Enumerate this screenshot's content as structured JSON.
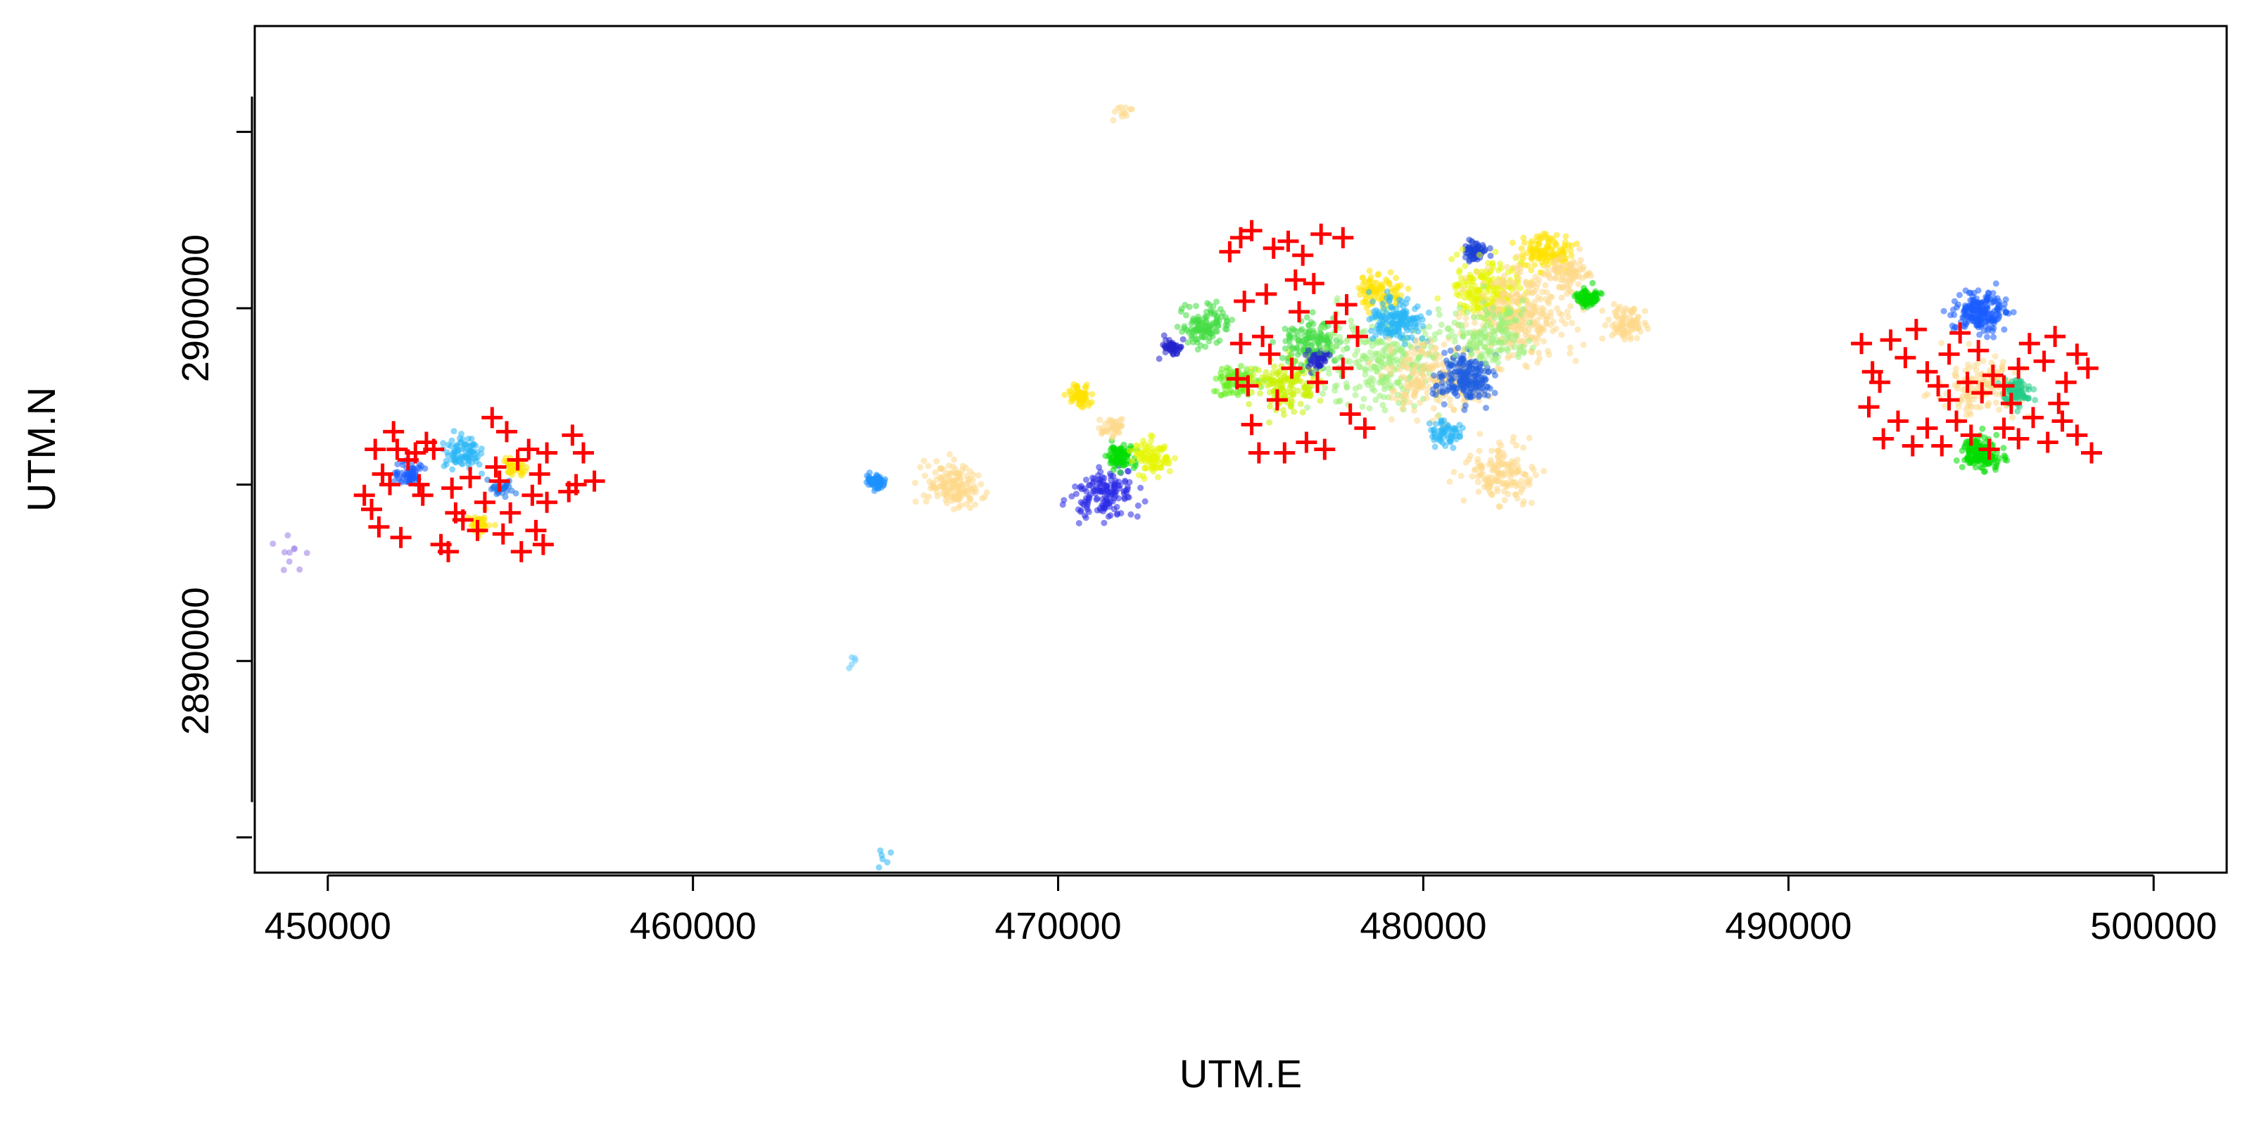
{
  "chart_data": {
    "type": "scatter",
    "title": "",
    "xlabel": "UTM.E",
    "ylabel": "UTM.N",
    "xlim": [
      448000,
      502000
    ],
    "ylim": [
      2884000,
      2908000
    ],
    "x_ticks": [
      450000,
      460000,
      470000,
      480000,
      490000,
      500000
    ],
    "x_tick_labels": [
      "450000",
      "460000",
      "470000",
      "480000",
      "490000",
      "500000"
    ],
    "y_ticks": [
      2890000,
      2900000
    ],
    "y_tick_labels": [
      "2890000",
      "2900000"
    ],
    "grid": false,
    "legend": "none",
    "marker_color": "#ff0000",
    "markers": {
      "symbol": "+",
      "points": [
        [
          451000,
          2894700
        ],
        [
          451200,
          2894300
        ],
        [
          451300,
          2896000
        ],
        [
          451400,
          2893800
        ],
        [
          451500,
          2895300
        ],
        [
          451700,
          2895000
        ],
        [
          451800,
          2896500
        ],
        [
          451900,
          2896000
        ],
        [
          452000,
          2893500
        ],
        [
          452200,
          2895700
        ],
        [
          452400,
          2895900
        ],
        [
          452500,
          2895000
        ],
        [
          452600,
          2894700
        ],
        [
          452700,
          2896200
        ],
        [
          452900,
          2896000
        ],
        [
          453100,
          2893300
        ],
        [
          453300,
          2893100
        ],
        [
          453400,
          2894900
        ],
        [
          453500,
          2894200
        ],
        [
          453700,
          2894000
        ],
        [
          453900,
          2895200
        ],
        [
          454100,
          2893700
        ],
        [
          454300,
          2894500
        ],
        [
          454500,
          2896900
        ],
        [
          454600,
          2895500
        ],
        [
          454700,
          2895100
        ],
        [
          454800,
          2893600
        ],
        [
          454900,
          2896500
        ],
        [
          455000,
          2894200
        ],
        [
          455200,
          2895700
        ],
        [
          455300,
          2893100
        ],
        [
          455500,
          2896000
        ],
        [
          455600,
          2894700
        ],
        [
          455700,
          2893700
        ],
        [
          455800,
          2895300
        ],
        [
          455900,
          2893300
        ],
        [
          456000,
          2894500
        ],
        [
          456000,
          2895900
        ],
        [
          456600,
          2894800
        ],
        [
          456700,
          2896400
        ],
        [
          456800,
          2895000
        ],
        [
          457000,
          2895900
        ],
        [
          457300,
          2895100
        ],
        [
          474900,
          2898000
        ],
        [
          475000,
          2899000
        ],
        [
          475100,
          2900200
        ],
        [
          475200,
          2897800
        ],
        [
          475300,
          2896700
        ],
        [
          475500,
          2895900
        ],
        [
          475600,
          2899200
        ],
        [
          475700,
          2900400
        ],
        [
          475800,
          2898700
        ],
        [
          476000,
          2897400
        ],
        [
          476200,
          2895900
        ],
        [
          476400,
          2898300
        ],
        [
          476600,
          2899900
        ],
        [
          476800,
          2896200
        ],
        [
          477000,
          2900700
        ],
        [
          477100,
          2897900
        ],
        [
          477300,
          2896000
        ],
        [
          477600,
          2899600
        ],
        [
          477800,
          2898300
        ],
        [
          478000,
          2897000
        ],
        [
          478200,
          2899200
        ],
        [
          478400,
          2896600
        ],
        [
          474700,
          2901600
        ],
        [
          475000,
          2902000
        ],
        [
          475300,
          2902200
        ],
        [
          475900,
          2901700
        ],
        [
          476300,
          2901900
        ],
        [
          476700,
          2901500
        ],
        [
          477200,
          2902100
        ],
        [
          477800,
          2902000
        ],
        [
          476500,
          2900800
        ],
        [
          477900,
          2900100
        ],
        [
          492000,
          2899000
        ],
        [
          492300,
          2898200
        ],
        [
          492500,
          2897900
        ],
        [
          492800,
          2899100
        ],
        [
          493200,
          2898600
        ],
        [
          493500,
          2899400
        ],
        [
          493800,
          2898200
        ],
        [
          494100,
          2897800
        ],
        [
          494400,
          2898700
        ],
        [
          494700,
          2899300
        ],
        [
          494900,
          2897900
        ],
        [
          495200,
          2898800
        ],
        [
          495600,
          2898100
        ],
        [
          495900,
          2897800
        ],
        [
          496300,
          2898300
        ],
        [
          496600,
          2899000
        ],
        [
          497000,
          2898500
        ],
        [
          497300,
          2899200
        ],
        [
          497600,
          2897900
        ],
        [
          497900,
          2898700
        ],
        [
          498200,
          2898300
        ],
        [
          492200,
          2897200
        ],
        [
          492600,
          2896300
        ],
        [
          493000,
          2896800
        ],
        [
          493400,
          2896100
        ],
        [
          493800,
          2896600
        ],
        [
          494200,
          2896100
        ],
        [
          494600,
          2896800
        ],
        [
          495000,
          2896400
        ],
        [
          495500,
          2896000
        ],
        [
          495900,
          2896600
        ],
        [
          496300,
          2896300
        ],
        [
          496700,
          2896900
        ],
        [
          497100,
          2896200
        ],
        [
          497500,
          2896800
        ],
        [
          497900,
          2896400
        ],
        [
          498300,
          2895900
        ],
        [
          494400,
          2897400
        ],
        [
          496100,
          2897300
        ],
        [
          497400,
          2897300
        ],
        [
          495300,
          2897600
        ]
      ]
    },
    "clusters": [
      {
        "color": "#1a5cff",
        "cx": 452200,
        "cy": 2895300,
        "r": 400,
        "n": 60
      },
      {
        "color": "#29b6f6",
        "cx": 453700,
        "cy": 2895900,
        "r": 500,
        "n": 90
      },
      {
        "color": "#ffe100",
        "cx": 455100,
        "cy": 2895500,
        "r": 300,
        "n": 40
      },
      {
        "color": "#ffe100",
        "cx": 454200,
        "cy": 2893900,
        "r": 300,
        "n": 40
      },
      {
        "color": "#1a73e8",
        "cx": 454700,
        "cy": 2894900,
        "r": 300,
        "n": 30
      },
      {
        "color": "#9b7de6",
        "cx": 449000,
        "cy": 2893100,
        "r": 500,
        "n": 10
      },
      {
        "color": "#1e90ff",
        "cx": 465000,
        "cy": 2895100,
        "r": 250,
        "n": 60
      },
      {
        "color": "#fdd98a",
        "cx": 467100,
        "cy": 2895000,
        "r": 700,
        "n": 150
      },
      {
        "color": "#66ccff",
        "cx": 464400,
        "cy": 2890000,
        "r": 200,
        "n": 5
      },
      {
        "color": "#29b6f6",
        "cx": 465200,
        "cy": 2884400,
        "r": 300,
        "n": 6
      },
      {
        "color": "#ffe100",
        "cx": 470600,
        "cy": 2897500,
        "r": 300,
        "n": 70
      },
      {
        "color": "#2a2ae6",
        "cx": 471300,
        "cy": 2894700,
        "r": 800,
        "n": 150
      },
      {
        "color": "#00dd00",
        "cx": 471700,
        "cy": 2895800,
        "r": 350,
        "n": 80
      },
      {
        "color": "#e6f500",
        "cx": 472600,
        "cy": 2895800,
        "r": 500,
        "n": 90
      },
      {
        "color": "#fdd98a",
        "cx": 471500,
        "cy": 2896600,
        "r": 300,
        "n": 40
      },
      {
        "color": "#2222cc",
        "cx": 473100,
        "cy": 2898900,
        "r": 250,
        "n": 50
      },
      {
        "color": "#44dd44",
        "cx": 474000,
        "cy": 2899500,
        "r": 600,
        "n": 120
      },
      {
        "color": "#66ee22",
        "cx": 474900,
        "cy": 2897900,
        "r": 500,
        "n": 90
      },
      {
        "color": "#c8f000",
        "cx": 476200,
        "cy": 2897800,
        "r": 800,
        "n": 150
      },
      {
        "color": "#44dd44",
        "cx": 477000,
        "cy": 2899000,
        "r": 700,
        "n": 150
      },
      {
        "color": "#2222cc",
        "cx": 477100,
        "cy": 2898500,
        "r": 300,
        "n": 40
      },
      {
        "color": "#9cf07a",
        "cx": 479000,
        "cy": 2898500,
        "r": 1500,
        "n": 260
      },
      {
        "color": "#ffe100",
        "cx": 478800,
        "cy": 2900500,
        "r": 600,
        "n": 90
      },
      {
        "color": "#29b6f6",
        "cx": 479300,
        "cy": 2899700,
        "r": 700,
        "n": 160
      },
      {
        "color": "#fdd98a",
        "cx": 480300,
        "cy": 2898000,
        "r": 1200,
        "n": 200
      },
      {
        "color": "#1f5fe0",
        "cx": 481200,
        "cy": 2898000,
        "r": 700,
        "n": 200
      },
      {
        "color": "#1a3fd6",
        "cx": 481400,
        "cy": 2901600,
        "r": 300,
        "n": 60
      },
      {
        "color": "#e6f500",
        "cx": 481800,
        "cy": 2900500,
        "r": 900,
        "n": 200
      },
      {
        "color": "#fdd98a",
        "cx": 482700,
        "cy": 2899800,
        "r": 1300,
        "n": 300
      },
      {
        "color": "#9cf07a",
        "cx": 481800,
        "cy": 2899300,
        "r": 1000,
        "n": 150
      },
      {
        "color": "#fdd98a",
        "cx": 482100,
        "cy": 2895400,
        "r": 900,
        "n": 150
      },
      {
        "color": "#29b6f6",
        "cx": 480600,
        "cy": 2896500,
        "r": 400,
        "n": 60
      },
      {
        "color": "#ffe100",
        "cx": 483400,
        "cy": 2901600,
        "r": 600,
        "n": 120
      },
      {
        "color": "#fdd98a",
        "cx": 484000,
        "cy": 2901000,
        "r": 500,
        "n": 80
      },
      {
        "color": "#00dd00",
        "cx": 484500,
        "cy": 2900300,
        "r": 300,
        "n": 70
      },
      {
        "color": "#fdd98a",
        "cx": 485500,
        "cy": 2899600,
        "r": 500,
        "n": 90
      },
      {
        "color": "#fdd98a",
        "cx": 471700,
        "cy": 2905600,
        "r": 300,
        "n": 12
      },
      {
        "color": "#1a5cff",
        "cx": 495200,
        "cy": 2899900,
        "r": 700,
        "n": 200
      },
      {
        "color": "#fdd98a",
        "cx": 495300,
        "cy": 2897800,
        "r": 900,
        "n": 150
      },
      {
        "color": "#22cc88",
        "cx": 496200,
        "cy": 2897600,
        "r": 400,
        "n": 90
      },
      {
        "color": "#00dd00",
        "cx": 495300,
        "cy": 2895900,
        "r": 500,
        "n": 160
      }
    ]
  }
}
